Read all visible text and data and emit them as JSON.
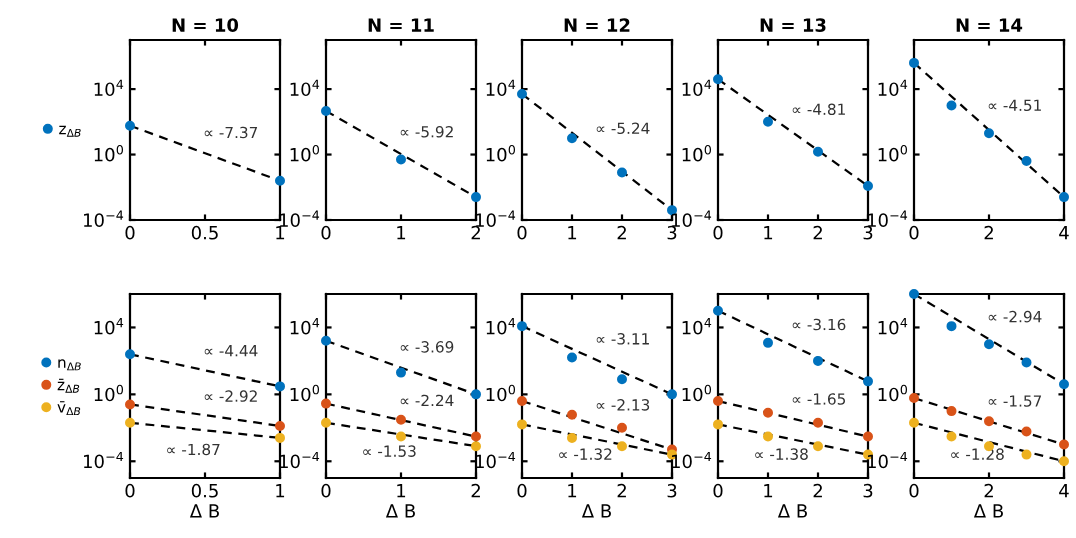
{
  "chart_data": [
    {
      "type": "scatter",
      "title": "N = 10",
      "log": "y",
      "legend": "left",
      "xlim": [
        0,
        1
      ],
      "xticks": [
        0,
        0.5,
        1
      ],
      "ylim": [
        0.0001,
        10000000
      ],
      "yticks": [
        {
          "value": 0.0001,
          "label": "10$^{−4}$"
        },
        {
          "value": 1,
          "label": "10$^{0}$"
        },
        {
          "value": 10000,
          "label": "10$^{4}$"
        }
      ],
      "x": [
        0,
        1
      ],
      "series": [
        {
          "name": "z$_{ΔB}$",
          "color": "#0072bd",
          "values": [
            58,
            0.025
          ]
        },
        {
          "type": "line",
          "color": "#000000",
          "line_style": "dashed",
          "x": [
            0,
            1
          ],
          "values": [
            58,
            0.025
          ]
        }
      ],
      "annotations": [
        "∝ -7.37"
      ]
    },
    {
      "type": "scatter",
      "title": "N = 11",
      "log": "y",
      "xlim": [
        0,
        2
      ],
      "xticks": [
        0,
        1,
        2
      ],
      "ylim": [
        0.0001,
        10000000
      ],
      "yticks": [
        {
          "value": 0.0001,
          "label": "10$^{−4}$"
        },
        {
          "value": 1,
          "label": "10$^{0}$"
        },
        {
          "value": 10000,
          "label": "10$^{4}$"
        }
      ],
      "x": [
        0,
        1,
        2
      ],
      "series": [
        {
          "color": "#0072bd",
          "values": [
            460,
            0.5,
            0.0025
          ]
        },
        {
          "type": "line",
          "color": "#000000",
          "line_style": "dashed",
          "x": [
            0,
            2
          ],
          "values": [
            460,
            0.0025
          ]
        }
      ],
      "annotations": [
        "∝ -5.92"
      ]
    },
    {
      "type": "scatter",
      "title": "N = 12",
      "log": "y",
      "xlim": [
        0,
        3
      ],
      "xticks": [
        0,
        1,
        2,
        3
      ],
      "ylim": [
        0.0001,
        10000000
      ],
      "yticks": [
        {
          "value": 0.0001,
          "label": "10$^{−4}$"
        },
        {
          "value": 1,
          "label": "10$^{0}$"
        },
        {
          "value": 10000,
          "label": "10$^{4}$"
        }
      ],
      "x": [
        0,
        1,
        2,
        3
      ],
      "series": [
        {
          "color": "#0072bd",
          "values": [
            5000,
            10,
            0.08,
            0.0004
          ]
        },
        {
          "type": "line",
          "color": "#000000",
          "line_style": "dashed",
          "x": [
            0,
            3
          ],
          "values": [
            5000,
            0.0004
          ]
        }
      ],
      "annotations": [
        "∝ -5.24"
      ]
    },
    {
      "type": "scatter",
      "title": "N = 13",
      "log": "y",
      "xlim": [
        0,
        3
      ],
      "xticks": [
        0,
        1,
        2,
        3
      ],
      "ylim": [
        0.0001,
        10000000
      ],
      "yticks": [
        {
          "value": 0.0001,
          "label": "10$^{−4}$"
        },
        {
          "value": 1,
          "label": "10$^{0}$"
        },
        {
          "value": 10000,
          "label": "10$^{4}$"
        }
      ],
      "x": [
        0,
        1,
        2,
        3
      ],
      "series": [
        {
          "color": "#0072bd",
          "values": [
            40000,
            100,
            1.5,
            0.012
          ]
        },
        {
          "type": "line",
          "color": "#000000",
          "line_style": "dashed",
          "x": [
            0,
            3
          ],
          "values": [
            40000,
            0.012
          ]
        }
      ],
      "annotations": [
        "∝ -4.81"
      ]
    },
    {
      "type": "scatter",
      "title": "N = 14",
      "log": "y",
      "xlim": [
        0,
        4
      ],
      "xticks": [
        0,
        2,
        4
      ],
      "ylim": [
        0.0001,
        10000000
      ],
      "yticks": [
        {
          "value": 0.0001,
          "label": "10$^{−4}$"
        },
        {
          "value": 1,
          "label": "10$^{0}$"
        },
        {
          "value": 10000,
          "label": "10$^{4}$"
        }
      ],
      "x": [
        0,
        1,
        2,
        3,
        4
      ],
      "series": [
        {
          "color": "#0072bd",
          "values": [
            400000,
            1000,
            20,
            0.4,
            0.0025
          ]
        },
        {
          "type": "line",
          "color": "#000000",
          "line_style": "dashed",
          "x": [
            0,
            4
          ],
          "values": [
            400000,
            0.0025
          ]
        }
      ],
      "annotations": [
        "∝ -4.51"
      ]
    },
    {
      "type": "scatter",
      "xlabel": "Δ B",
      "log": "y",
      "legend": "left",
      "xlim": [
        0,
        1
      ],
      "xticks": [
        0,
        0.5,
        1
      ],
      "ylim": [
        1e-05,
        1000000
      ],
      "yticks": [
        {
          "value": 0.0001,
          "label": "10$^{−4}$"
        },
        {
          "value": 1,
          "label": "10$^{0}$"
        },
        {
          "value": 10000,
          "label": "10$^{4}$"
        }
      ],
      "x": [
        0,
        1
      ],
      "series": [
        {
          "name": "n$_{ΔB}$",
          "color": "#0072bd",
          "values": [
            250,
            3
          ]
        },
        {
          "name": "z̄$_{ΔB}$",
          "color": "#d95319",
          "values": [
            0.25,
            0.013
          ]
        },
        {
          "name": "v̄$_{ΔB}$",
          "color": "#edb120",
          "values": [
            0.02,
            0.0025
          ]
        },
        {
          "type": "line",
          "color": "#000000",
          "line_style": "dashed",
          "x": [
            0,
            1
          ],
          "values": [
            250,
            3
          ]
        },
        {
          "type": "line",
          "color": "#000000",
          "line_style": "dashed",
          "x": [
            0,
            1
          ],
          "values": [
            0.25,
            0.013
          ]
        },
        {
          "type": "line",
          "color": "#000000",
          "line_style": "dashed",
          "x": [
            0,
            1
          ],
          "values": [
            0.02,
            0.0025
          ]
        }
      ],
      "annotations": [
        "∝ -4.44",
        "∝ -2.92",
        "∝ -1.87"
      ]
    },
    {
      "type": "scatter",
      "xlabel": "Δ B",
      "log": "y",
      "xlim": [
        0,
        2
      ],
      "xticks": [
        0,
        1,
        2
      ],
      "ylim": [
        1e-05,
        1000000
      ],
      "yticks": [
        {
          "value": 0.0001,
          "label": "10$^{−4}$"
        },
        {
          "value": 1,
          "label": "10$^{0}$"
        },
        {
          "value": 10000,
          "label": "10$^{4}$"
        }
      ],
      "x": [
        0,
        1,
        2
      ],
      "series": [
        {
          "color": "#0072bd",
          "values": [
            1600,
            20,
            1
          ]
        },
        {
          "color": "#d95319",
          "values": [
            0.28,
            0.03,
            0.003
          ]
        },
        {
          "color": "#edb120",
          "values": [
            0.02,
            0.003,
            0.0008
          ]
        },
        {
          "type": "line",
          "color": "#000000",
          "line_style": "dashed",
          "x": [
            0,
            2
          ],
          "values": [
            1600,
            1
          ]
        },
        {
          "type": "line",
          "color": "#000000",
          "line_style": "dashed",
          "x": [
            0,
            2
          ],
          "values": [
            0.28,
            0.003
          ]
        },
        {
          "type": "line",
          "color": "#000000",
          "line_style": "dashed",
          "x": [
            0,
            2
          ],
          "values": [
            0.02,
            0.0008
          ]
        }
      ],
      "annotations": [
        "∝ -3.69",
        "∝ -2.24",
        "∝ -1.53"
      ]
    },
    {
      "type": "scatter",
      "xlabel": "Δ B",
      "log": "y",
      "xlim": [
        0,
        3
      ],
      "xticks": [
        0,
        1,
        2,
        3
      ],
      "ylim": [
        1e-05,
        1000000
      ],
      "yticks": [
        {
          "value": 0.0001,
          "label": "10$^{−4}$"
        },
        {
          "value": 1,
          "label": "10$^{0}$"
        },
        {
          "value": 10000,
          "label": "10$^{4}$"
        }
      ],
      "x": [
        0,
        1,
        2,
        3
      ],
      "series": [
        {
          "color": "#0072bd",
          "values": [
            12000,
            160,
            8,
            1
          ]
        },
        {
          "color": "#d95319",
          "values": [
            0.4,
            0.06,
            0.01,
            0.0005
          ]
        },
        {
          "color": "#edb120",
          "values": [
            0.016,
            0.0025,
            0.0008,
            0.00025
          ]
        },
        {
          "type": "line",
          "color": "#000000",
          "line_style": "dashed",
          "x": [
            0,
            3
          ],
          "values": [
            12000,
            1
          ]
        },
        {
          "type": "line",
          "color": "#000000",
          "line_style": "dashed",
          "x": [
            0,
            3
          ],
          "values": [
            0.4,
            0.0005
          ]
        },
        {
          "type": "line",
          "color": "#000000",
          "line_style": "dashed",
          "x": [
            0,
            3
          ],
          "values": [
            0.016,
            0.00025
          ]
        }
      ],
      "annotations": [
        "∝ -3.11",
        "∝ -2.13",
        "∝ -1.32"
      ]
    },
    {
      "type": "scatter",
      "xlabel": "Δ B",
      "log": "y",
      "xlim": [
        0,
        3
      ],
      "xticks": [
        0,
        1,
        2,
        3
      ],
      "ylim": [
        1e-05,
        1000000
      ],
      "yticks": [
        {
          "value": 0.0001,
          "label": "10$^{−4}$"
        },
        {
          "value": 1,
          "label": "10$^{0}$"
        },
        {
          "value": 10000,
          "label": "10$^{4}$"
        }
      ],
      "x": [
        0,
        1,
        2,
        3
      ],
      "series": [
        {
          "color": "#0072bd",
          "values": [
            100000,
            1200,
            100,
            6
          ]
        },
        {
          "color": "#d95319",
          "values": [
            0.4,
            0.08,
            0.02,
            0.003
          ]
        },
        {
          "color": "#edb120",
          "values": [
            0.016,
            0.003,
            0.0008,
            0.00025
          ]
        },
        {
          "type": "line",
          "color": "#000000",
          "line_style": "dashed",
          "x": [
            0,
            3
          ],
          "values": [
            100000,
            6
          ]
        },
        {
          "type": "line",
          "color": "#000000",
          "line_style": "dashed",
          "x": [
            0,
            3
          ],
          "values": [
            0.4,
            0.003
          ]
        },
        {
          "type": "line",
          "color": "#000000",
          "line_style": "dashed",
          "x": [
            0,
            3
          ],
          "values": [
            0.016,
            0.00025
          ]
        }
      ],
      "annotations": [
        "∝ -3.16",
        "∝ -1.65",
        "∝ -1.38"
      ]
    },
    {
      "type": "scatter",
      "xlabel": "Δ B",
      "log": "y",
      "xlim": [
        0,
        4
      ],
      "xticks": [
        0,
        2,
        4
      ],
      "ylim": [
        1e-05,
        1000000
      ],
      "yticks": [
        {
          "value": 0.0001,
          "label": "10$^{−4}$"
        },
        {
          "value": 1,
          "label": "10$^{0}$"
        },
        {
          "value": 10000,
          "label": "10$^{4}$"
        }
      ],
      "x": [
        0,
        1,
        2,
        3,
        4
      ],
      "series": [
        {
          "color": "#0072bd",
          "values": [
            1000000,
            12000,
            1000,
            80,
            4
          ]
        },
        {
          "color": "#d95319",
          "values": [
            0.6,
            0.1,
            0.025,
            0.006,
            0.001
          ]
        },
        {
          "color": "#edb120",
          "values": [
            0.02,
            0.003,
            0.0008,
            0.00025,
            0.0001
          ]
        },
        {
          "type": "line",
          "color": "#000000",
          "line_style": "dashed",
          "x": [
            0,
            4
          ],
          "values": [
            1000000,
            4
          ]
        },
        {
          "type": "line",
          "color": "#000000",
          "line_style": "dashed",
          "x": [
            0,
            4
          ],
          "values": [
            0.6,
            0.001
          ]
        },
        {
          "type": "line",
          "color": "#000000",
          "line_style": "dashed",
          "x": [
            0,
            4
          ],
          "values": [
            0.02,
            0.0001
          ]
        }
      ],
      "annotations": [
        "∝ -2.94",
        "∝ -1.57",
        "∝ -1.28"
      ]
    }
  ]
}
